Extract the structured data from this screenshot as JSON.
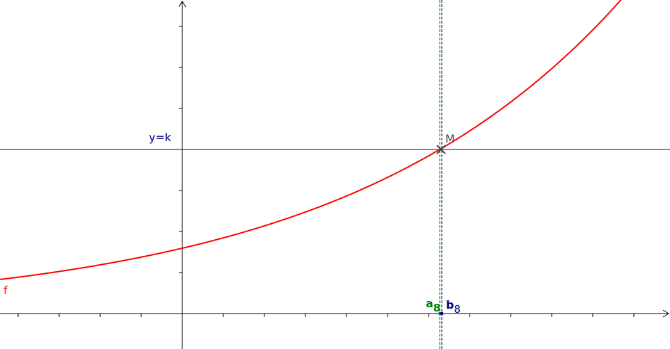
{
  "labels": {
    "line_k": "y=k",
    "curve": "f",
    "point": "M",
    "a_name": "a",
    "a_index": "8",
    "b_name": "b",
    "b_index": "8"
  },
  "colors": {
    "curve": "#ff0000",
    "horizontal_line": "#00007f",
    "a_line": "#007f00",
    "b_line": "#00007f",
    "axes": "#000000",
    "point": "#444444"
  }
}
